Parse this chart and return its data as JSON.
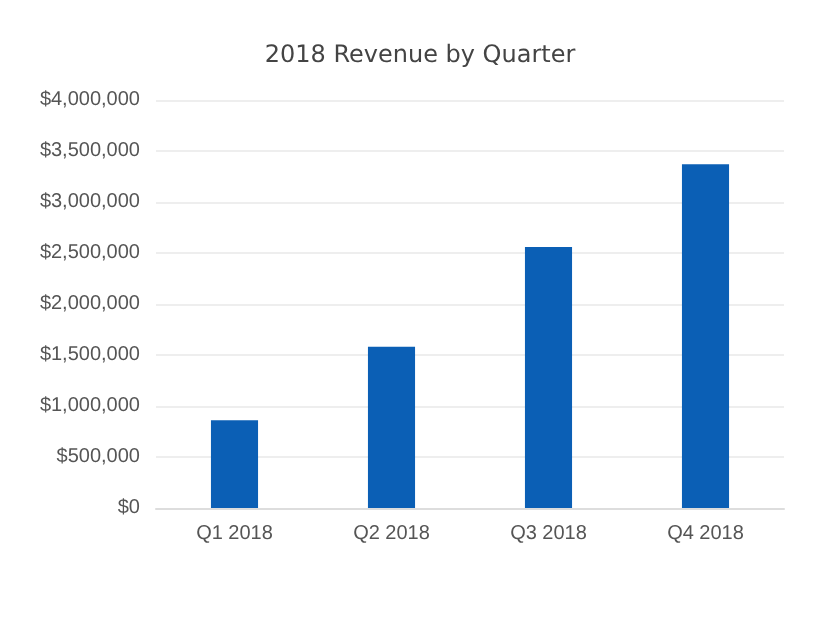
{
  "chart_data": {
    "type": "bar",
    "title": "2018 Revenue by Quarter",
    "categories": [
      "Q1 2018",
      "Q2 2018",
      "Q3 2018",
      "Q4 2018"
    ],
    "values": [
      860000,
      1580000,
      2560000,
      3370000
    ],
    "color": "#0b5fb5",
    "ylim": [
      0,
      4000000
    ],
    "yticks": [
      {
        "value": 0,
        "label": "$0"
      },
      {
        "value": 500000,
        "label": "$500,000"
      },
      {
        "value": 1000000,
        "label": "$1,000,000"
      },
      {
        "value": 1500000,
        "label": "$1,500,000"
      },
      {
        "value": 2000000,
        "label": "$2,000,000"
      },
      {
        "value": 2500000,
        "label": "$2,500,000"
      },
      {
        "value": 3000000,
        "label": "$3,000,000"
      },
      {
        "value": 3500000,
        "label": "$3,500,000"
      },
      {
        "value": 4000000,
        "label": "$4,000,000"
      }
    ],
    "grid": true
  }
}
